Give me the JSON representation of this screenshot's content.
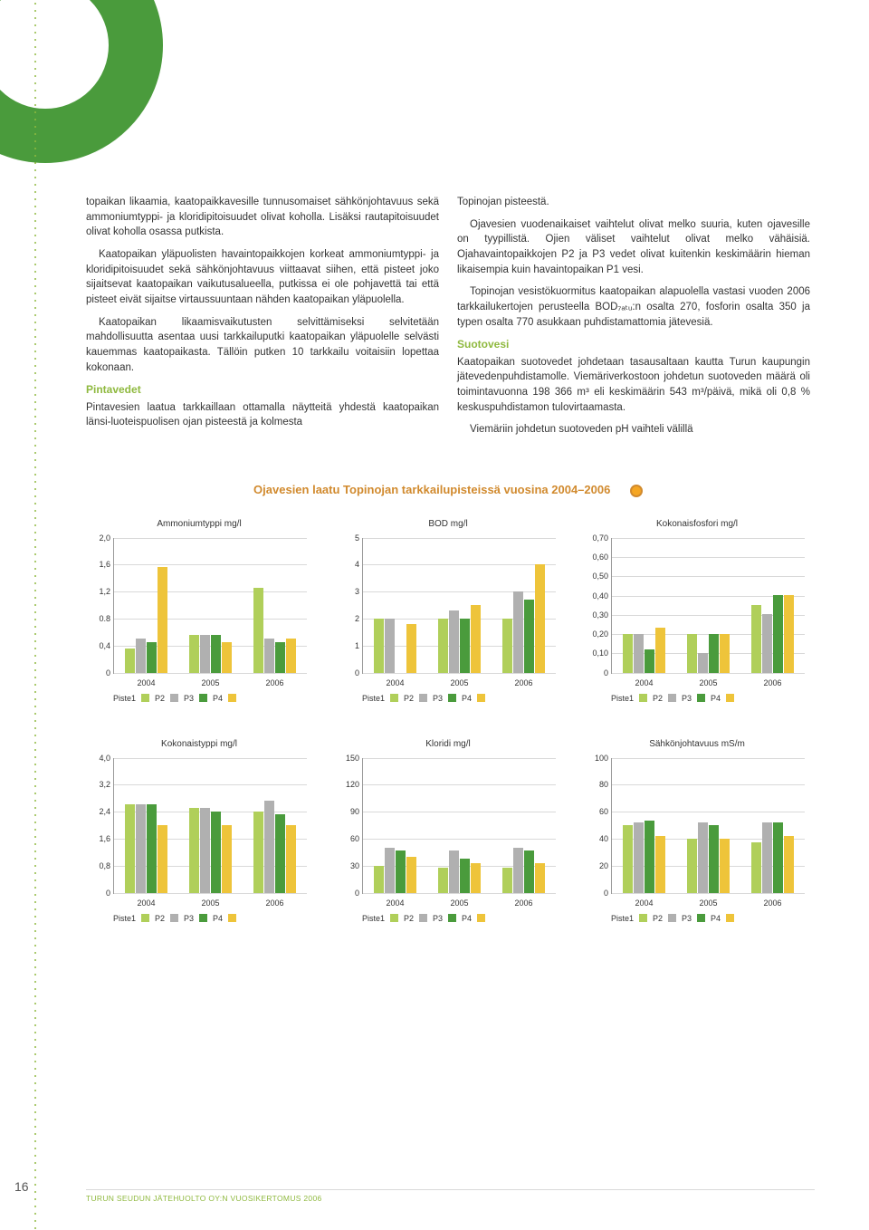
{
  "page_number": "16",
  "footer": "TURUN SEUDUN JÄTEHUOLTO OY:N VUOSIKERTOMUS 2006",
  "left_col": {
    "p1": "topaikan likaamia, kaatopaikkavesille tunnusomaiset sähkönjohtavuus sekä ammoniumtyppi- ja kloridipitoisuudet olivat koholla. Lisäksi rautapitoisuudet olivat koholla osassa putkista.",
    "p2": "Kaatopaikan yläpuolisten havaintopaikkojen korkeat ammoniumtyppi- ja kloridipitoisuudet sekä sähkönjohtavuus viittaavat siihen, että pisteet joko sijaitsevat kaatopaikan vaikutusalueella, putkissa ei ole pohjavettä tai että pisteet eivät sijaitse virtaussuuntaan nähden kaatopaikan yläpuolella.",
    "p3": "Kaatopaikan likaamisvaikutusten selvittämiseksi selvitetään mahdollisuutta asentaa uusi tarkkailuputki kaatopaikan yläpuolelle selvästi kauemmas kaatopaikasta. Tällöin putken 10 tarkkailu voitaisiin lopettaa kokonaan.",
    "h1": "Pintavedet",
    "p4": "Pintavesien laatua tarkkaillaan ottamalla näytteitä yhdestä kaatopaikan länsi-luoteispuolisen ojan pisteestä ja kolmesta"
  },
  "right_col": {
    "p1": "Topinojan pisteestä.",
    "p2": "Ojavesien vuodenaikaiset vaihtelut olivat melko suuria, kuten ojavesille on tyypillistä. Ojien väliset vaihtelut olivat melko vähäisiä. Ojahavaintopaikkojen P2 ja P3 vedet olivat kuitenkin keskimäärin hieman likaisempia kuin havaintopaikan P1 vesi.",
    "p3": "Topinojan vesistökuormitus kaatopaikan alapuolella vastasi vuoden 2006 tarkkailukertojen perusteella BOD₇ₐₜᵤ:n osalta 270, fosforin osalta 350 ja typen osalta 770 asukkaan puhdistamattomia jätevesiä.",
    "h1": "Suotovesi",
    "p4": "Kaatopaikan suotovedet johdetaan tasausaltaan kautta Turun kaupungin jätevedenpuhdistamolle. Viemäriverkostoon johdetun suotoveden määrä oli toimintavuonna 198 366 m³ eli keskimäärin 543 m³/päivä, mikä oli 0,8 % keskuspuhdistamon tulovirtaamasta.",
    "p5": "Viemäriin johdetun suotoveden pH vaihteli välillä"
  },
  "charts_title": "Ojavesien laatu Topinojan tarkkailupisteissä vuosina 2004–2006",
  "colors": {
    "p1": "#b0cf5a",
    "p2": "#b0b0b0",
    "p3": "#4a9b3c",
    "p4": "#eec43a"
  },
  "years": [
    "2004",
    "2005",
    "2006"
  ],
  "legend": {
    "l1": "Piste1",
    "l2": "P2",
    "l3": "P3",
    "l4": "P4"
  },
  "charts": [
    {
      "title": "Ammoniumtyppi mg/l",
      "ymax": 2.0,
      "yticks": [
        "2,0",
        "1,6",
        "1,2",
        "0.8",
        "0,4",
        "0"
      ],
      "data": [
        [
          0.35,
          0.5,
          0.45,
          1.55
        ],
        [
          0.55,
          0.55,
          0.55,
          0.45
        ],
        [
          1.25,
          0.5,
          0.45,
          0.5
        ]
      ]
    },
    {
      "title": "BOD mg/l",
      "ymax": 5,
      "yticks": [
        "5",
        "4",
        "3",
        "2",
        "1",
        "0"
      ],
      "data": [
        [
          2.0,
          2.0,
          0.0,
          1.8
        ],
        [
          2.0,
          2.3,
          2.0,
          2.5
        ],
        [
          2.0,
          3.0,
          2.7,
          4.0
        ]
      ]
    },
    {
      "title": "Kokonaisfosfori mg/l",
      "ymax": 0.7,
      "yticks": [
        "0,70",
        "0,60",
        "0,50",
        "0,40",
        "0,30",
        "0,20",
        "0,10",
        "0"
      ],
      "data": [
        [
          0.2,
          0.2,
          0.12,
          0.23
        ],
        [
          0.2,
          0.1,
          0.2,
          0.2
        ],
        [
          0.35,
          0.3,
          0.4,
          0.4
        ]
      ]
    },
    {
      "title": "Kokonaistyppi mg/l",
      "ymax": 4.0,
      "yticks": [
        "4,0",
        "3,2",
        "2,4",
        "1,6",
        "0,8",
        "0"
      ],
      "data": [
        [
          2.6,
          2.6,
          2.6,
          2.0
        ],
        [
          2.5,
          2.5,
          2.4,
          2.0
        ],
        [
          2.4,
          2.7,
          2.3,
          2.0
        ]
      ]
    },
    {
      "title": "Kloridi mg/l",
      "ymax": 150,
      "yticks": [
        "150",
        "120",
        "90",
        "60",
        "30",
        "0"
      ],
      "data": [
        [
          30,
          50,
          47,
          40
        ],
        [
          28,
          47,
          38,
          33
        ],
        [
          28,
          50,
          47,
          33
        ]
      ]
    },
    {
      "title": "Sähkönjohtavuus mS/m",
      "ymax": 100,
      "yticks": [
        "100",
        "80",
        "60",
        "40",
        "20",
        "0"
      ],
      "data": [
        [
          50,
          52,
          53,
          42
        ],
        [
          40,
          52,
          50,
          40
        ],
        [
          37,
          52,
          52,
          42
        ]
      ]
    }
  ]
}
